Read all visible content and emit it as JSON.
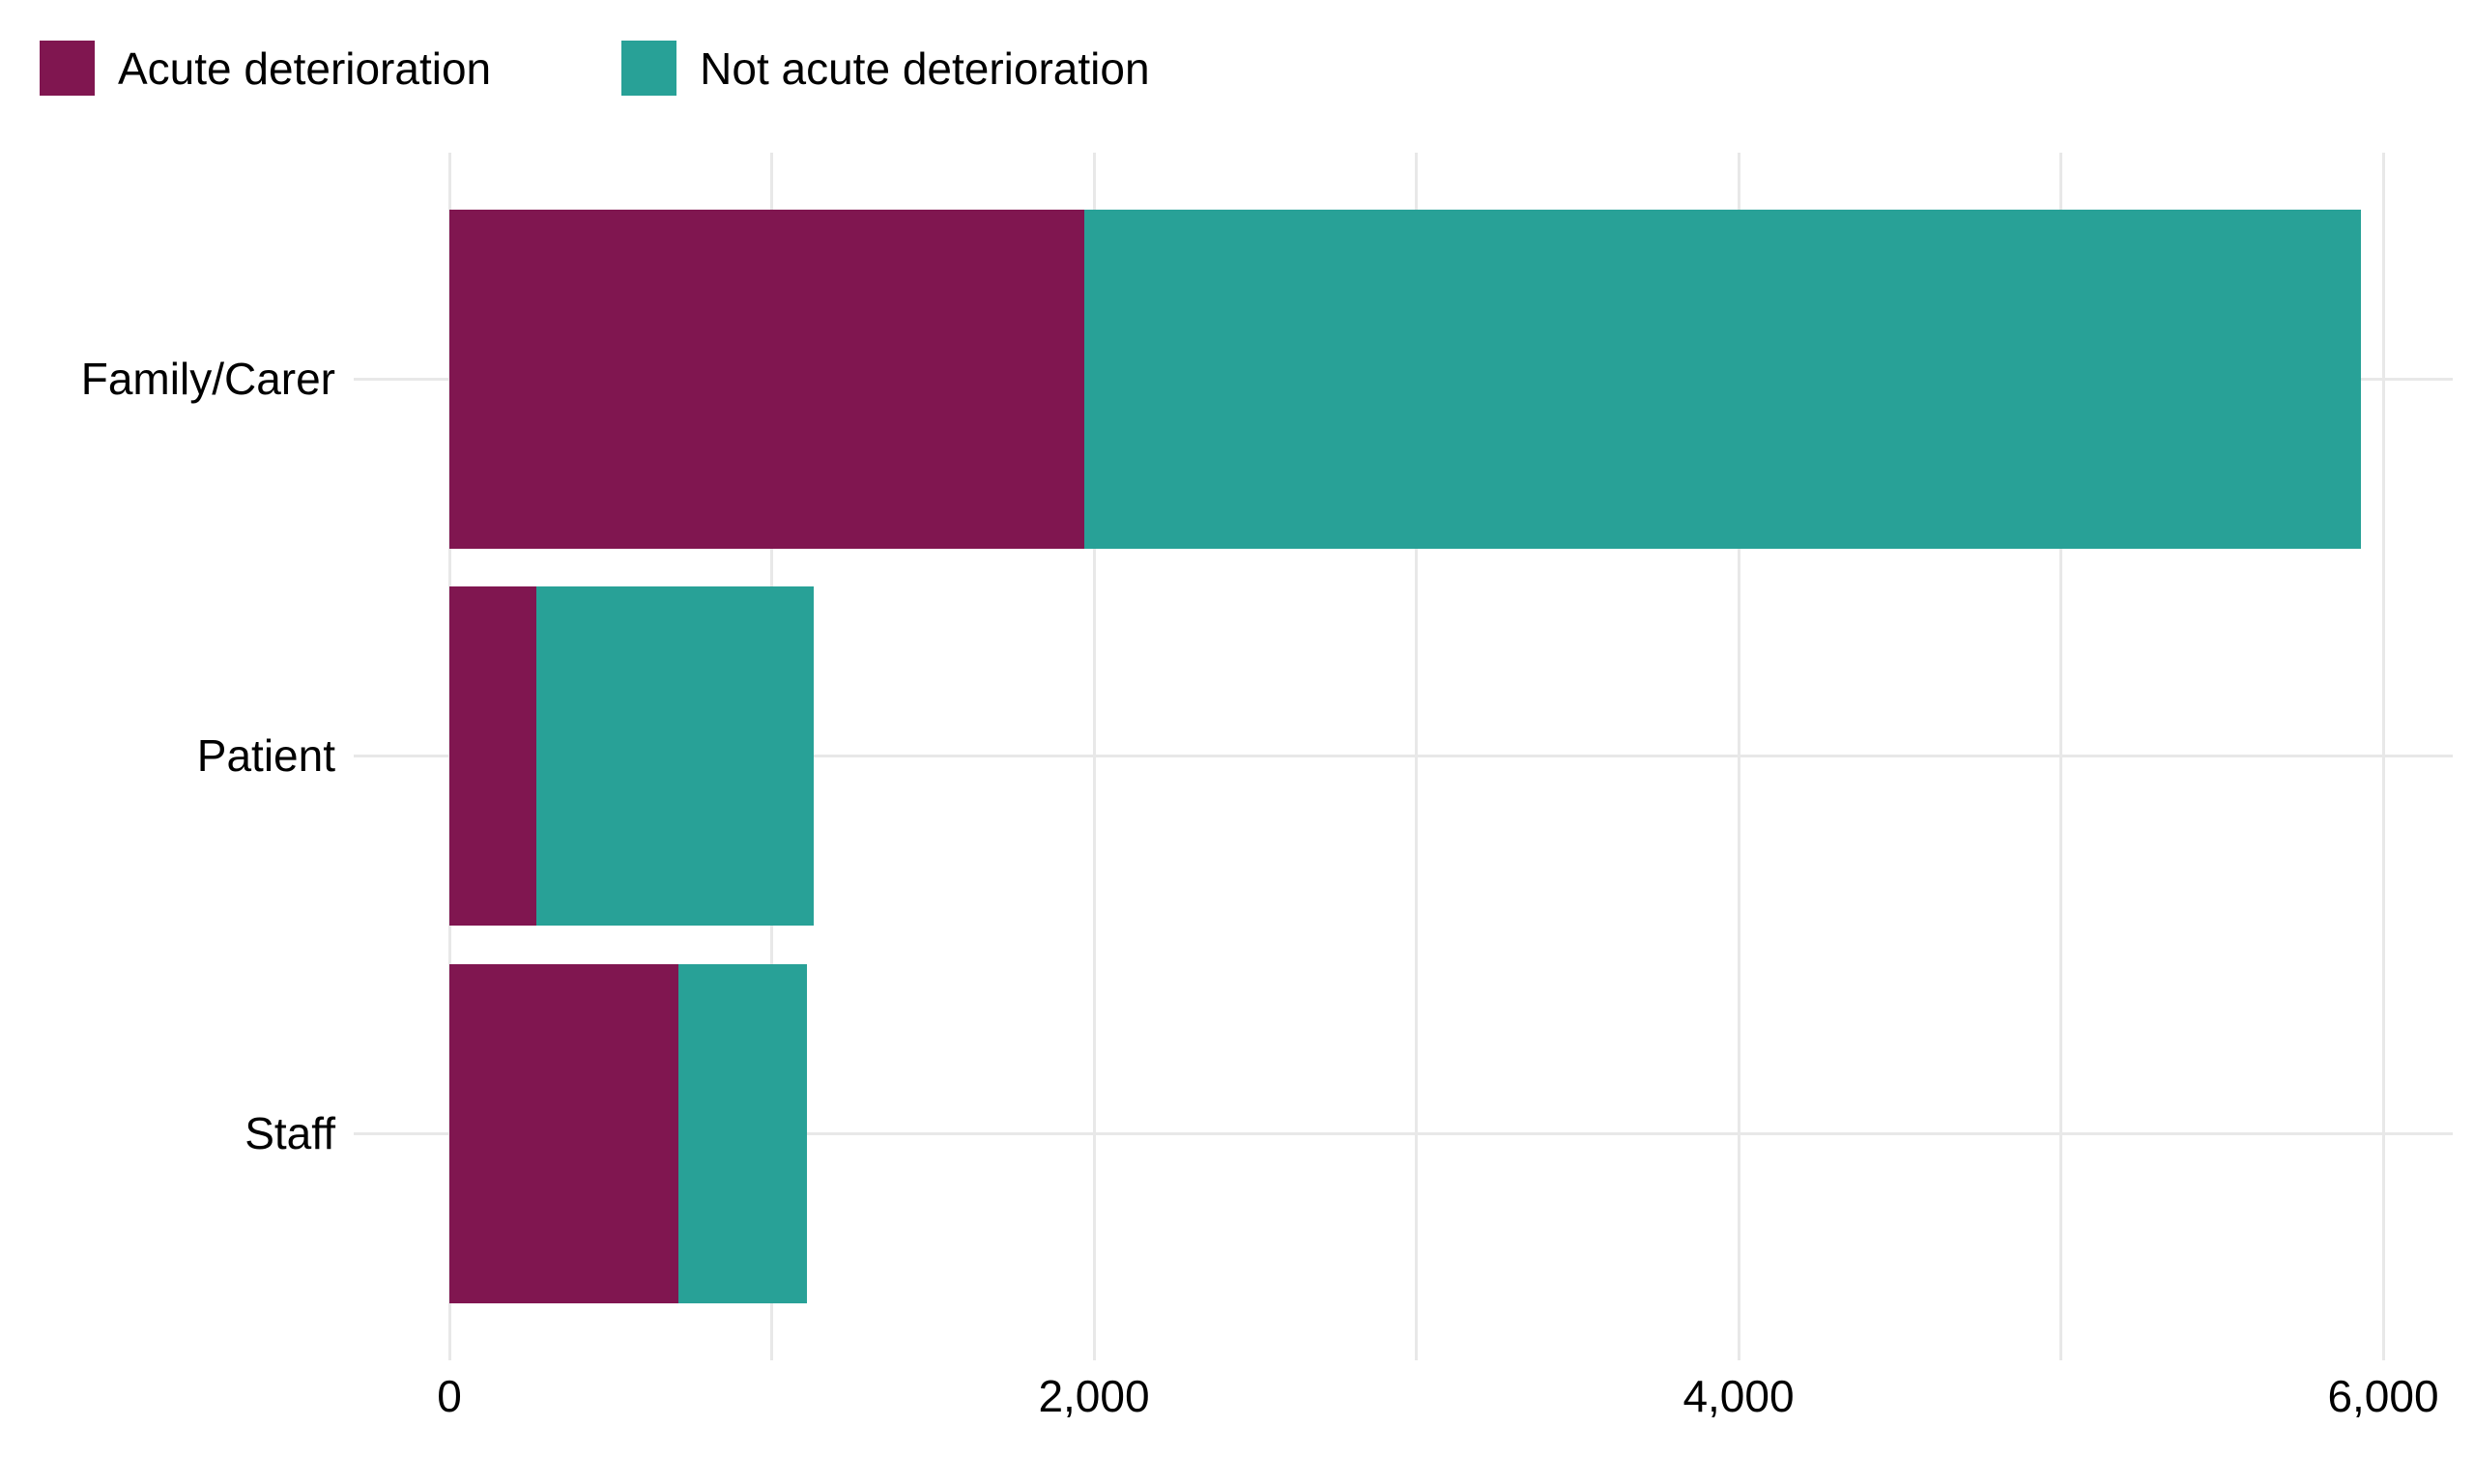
{
  "chart_data": {
    "type": "bar",
    "orientation": "horizontal",
    "stacked": true,
    "title": "",
    "xlabel": "",
    "ylabel": "",
    "categories": [
      "Family/Carer",
      "Patient",
      "Staff"
    ],
    "series": [
      {
        "name": "Acute deterioration",
        "color": "#801650",
        "values": [
          1970,
          270,
          710
        ]
      },
      {
        "name": "Not acute deterioration",
        "color": "#28A197",
        "values": [
          3960,
          860,
          400
        ]
      }
    ],
    "totals": [
      5930,
      1130,
      1110
    ],
    "xlim": [
      0,
      6000
    ],
    "x_major_ticks": [
      0,
      2000,
      4000,
      6000
    ],
    "x_tick_labels": [
      "0",
      "2,000",
      "4,000",
      "6,000"
    ],
    "x_minor_gridlines": [
      1000,
      3000,
      5000
    ],
    "grid": "vertical major+minor gridlines, horizontal gridline per category",
    "legend_position": "top-left",
    "background_color": "#FFFFFF",
    "gridline_color": "#E8E8E8",
    "text_color": "#000000"
  }
}
